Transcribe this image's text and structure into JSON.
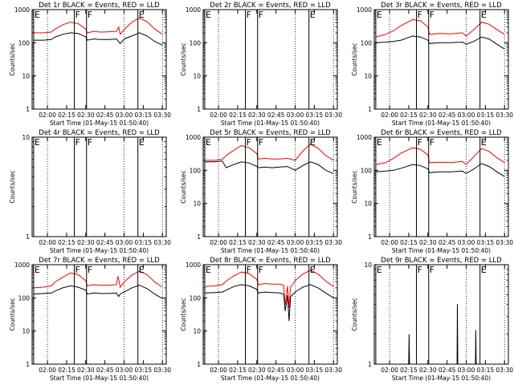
{
  "page": {
    "background": "#ffffff",
    "events_color": "#000000",
    "lld_color": "#ff0000"
  },
  "chart_data": [
    {
      "type": "line",
      "title": "Det 1r BLACK = Events, RED = LLD",
      "xlabel": "Start Time (01-May-15 01:50:40)",
      "ylabel": "Counts/sec",
      "yscale": "log",
      "ylim": [
        1,
        1000
      ],
      "xlim": [
        1.8,
        3.55
      ],
      "x_ticks": [
        "02:00",
        "02:15",
        "02:30",
        "02:45",
        "03:00",
        "03:15",
        "03:30"
      ],
      "y_ticks": [
        "1",
        "10",
        "100",
        "1000"
      ],
      "markers": [
        {
          "label": "E",
          "x": 1.82
        },
        {
          "label": "F",
          "x": 2.35
        },
        {
          "label": "F",
          "x": 2.51
        },
        {
          "label": "E",
          "x": 3.18
        }
      ],
      "series": [
        {
          "name": "Events",
          "color": "#000000",
          "x": [
            1.82,
            1.95,
            2.05,
            2.1,
            2.2,
            2.3,
            2.4,
            2.5,
            2.52,
            2.6,
            2.7,
            2.8,
            2.9,
            2.95,
            3.0,
            3.1,
            3.2,
            3.3,
            3.4,
            3.5
          ],
          "values": [
            120,
            120,
            125,
            150,
            180,
            200,
            190,
            150,
            120,
            130,
            125,
            125,
            130,
            95,
            130,
            160,
            200,
            160,
            110,
            85
          ]
        },
        {
          "name": "LLD",
          "color": "#ff0000",
          "x": [
            1.82,
            1.95,
            2.05,
            2.1,
            2.2,
            2.3,
            2.4,
            2.5,
            2.52,
            2.6,
            2.7,
            2.8,
            2.9,
            2.93,
            2.95,
            3.0,
            3.1,
            3.2,
            3.3,
            3.4,
            3.5
          ],
          "values": [
            200,
            200,
            210,
            260,
            350,
            420,
            380,
            260,
            200,
            220,
            210,
            215,
            220,
            300,
            180,
            250,
            420,
            560,
            430,
            260,
            180
          ]
        }
      ]
    },
    {
      "type": "line",
      "title": "Det 2r BLACK = Events, RED = LLD",
      "xlabel": "Start Time (01-May-15 01:50:40)",
      "ylabel": "Counts/sec",
      "yscale": "log",
      "ylim": [
        1,
        1000
      ],
      "xlim": [
        1.8,
        3.55
      ],
      "x_ticks": [
        "02:00",
        "02:15",
        "02:30",
        "02:45",
        "03:00",
        "03:15",
        "03:30"
      ],
      "y_ticks": [
        "1",
        "10",
        "100",
        "1000"
      ],
      "markers": [
        {
          "label": "E",
          "x": 1.82
        },
        {
          "label": "F",
          "x": 2.35
        },
        {
          "label": "F",
          "x": 2.51
        },
        {
          "label": "E",
          "x": 3.18
        }
      ],
      "series": []
    },
    {
      "type": "line",
      "title": "Det 3r BLACK = Events, RED = LLD",
      "xlabel": "Start Time (01-May-15 01:50:40)",
      "ylabel": "Counts/sec",
      "yscale": "log",
      "ylim": [
        1,
        1000
      ],
      "xlim": [
        1.8,
        3.55
      ],
      "x_ticks": [
        "02:00",
        "02:15",
        "02:30",
        "02:45",
        "03:00",
        "03:15",
        "03:30"
      ],
      "y_ticks": [
        "1",
        "10",
        "100",
        "1000"
      ],
      "markers": [
        {
          "label": "E",
          "x": 1.82
        },
        {
          "label": "F",
          "x": 2.35
        },
        {
          "label": "F",
          "x": 2.51
        },
        {
          "label": "E",
          "x": 3.18
        }
      ],
      "series": [
        {
          "name": "Events",
          "color": "#000000",
          "x": [
            1.82,
            1.95,
            2.05,
            2.15,
            2.3,
            2.4,
            2.5,
            2.52,
            2.65,
            2.8,
            2.95,
            3.0,
            3.1,
            3.2,
            3.3,
            3.4,
            3.5
          ],
          "values": [
            100,
            105,
            110,
            120,
            160,
            150,
            120,
            95,
            100,
            100,
            105,
            90,
            110,
            150,
            130,
            90,
            65
          ]
        },
        {
          "name": "LLD",
          "color": "#ff0000",
          "x": [
            1.82,
            1.95,
            2.05,
            2.15,
            2.3,
            2.4,
            2.5,
            2.52,
            2.65,
            2.8,
            2.95,
            3.0,
            3.1,
            3.2,
            3.3,
            3.4,
            3.5
          ],
          "values": [
            150,
            180,
            230,
            330,
            500,
            460,
            300,
            180,
            190,
            185,
            200,
            160,
            250,
            420,
            360,
            250,
            180
          ]
        }
      ]
    },
    {
      "type": "line",
      "title": "Det 4r BLACK = Events, RED = LLD",
      "xlabel": "Start Time (01-May-15 01:50:40)",
      "ylabel": "Counts/sec",
      "yscale": "log",
      "ylim": [
        1,
        10
      ],
      "xlim": [
        1.8,
        3.55
      ],
      "x_ticks": [
        "02:00",
        "02:15",
        "02:30",
        "02:45",
        "03:00",
        "03:15",
        "03:30"
      ],
      "y_ticks": [
        "1",
        "10"
      ],
      "markers": [
        {
          "label": "E",
          "x": 1.82
        },
        {
          "label": "F",
          "x": 2.35
        },
        {
          "label": "F",
          "x": 2.51
        },
        {
          "label": "E",
          "x": 3.18
        }
      ],
      "series": []
    },
    {
      "type": "line",
      "title": "Det 5r BLACK = Events, RED = LLD",
      "xlabel": "Start Time (01-May-15 01:50:40)",
      "ylabel": "Counts/sec",
      "yscale": "log",
      "ylim": [
        1,
        1000
      ],
      "xlim": [
        1.8,
        3.55
      ],
      "x_ticks": [
        "02:00",
        "02:15",
        "02:30",
        "02:45",
        "03:00",
        "03:15",
        "03:30"
      ],
      "y_ticks": [
        "1",
        "10",
        "100",
        "1000"
      ],
      "markers": [
        {
          "label": "E",
          "x": 1.82
        },
        {
          "label": "F",
          "x": 2.35
        },
        {
          "label": "F",
          "x": 2.51
        },
        {
          "label": "E",
          "x": 3.18
        }
      ],
      "series": [
        {
          "name": "Events",
          "color": "#000000",
          "x": [
            1.82,
            1.95,
            2.05,
            2.1,
            2.2,
            2.3,
            2.4,
            2.5,
            2.52,
            2.6,
            2.7,
            2.8,
            2.9,
            3.0,
            3.1,
            3.2,
            3.3,
            3.4,
            3.5
          ],
          "values": [
            180,
            180,
            190,
            120,
            150,
            180,
            165,
            130,
            120,
            125,
            120,
            125,
            130,
            100,
            140,
            180,
            150,
            100,
            80
          ]
        },
        {
          "name": "LLD",
          "color": "#ff0000",
          "x": [
            1.82,
            1.95,
            2.05,
            2.1,
            2.2,
            2.3,
            2.4,
            2.5,
            2.52,
            2.6,
            2.7,
            2.8,
            2.9,
            3.0,
            3.1,
            3.2,
            3.3,
            3.4,
            3.5
          ],
          "values": [
            200,
            200,
            215,
            280,
            400,
            560,
            480,
            320,
            220,
            230,
            220,
            220,
            230,
            200,
            380,
            620,
            460,
            280,
            200
          ]
        }
      ]
    },
    {
      "type": "line",
      "title": "Det 6r BLACK = Events, RED = LLD",
      "xlabel": "Start Time (01-May-15 01:50:40)",
      "ylabel": "Counts/sec",
      "yscale": "log",
      "ylim": [
        1,
        1000
      ],
      "xlim": [
        1.8,
        3.55
      ],
      "x_ticks": [
        "02:00",
        "02:15",
        "02:30",
        "02:45",
        "03:00",
        "03:15",
        "03:30"
      ],
      "y_ticks": [
        "1",
        "10",
        "100",
        "1000"
      ],
      "markers": [
        {
          "label": "E",
          "x": 1.82
        },
        {
          "label": "F",
          "x": 2.35
        },
        {
          "label": "F",
          "x": 2.51
        },
        {
          "label": "E",
          "x": 3.18
        }
      ],
      "series": [
        {
          "name": "Events",
          "color": "#000000",
          "x": [
            1.82,
            1.95,
            2.05,
            2.15,
            2.3,
            2.4,
            2.5,
            2.52,
            2.65,
            2.8,
            2.95,
            3.0,
            3.1,
            3.2,
            3.3,
            3.4,
            3.5
          ],
          "values": [
            90,
            95,
            100,
            115,
            150,
            140,
            110,
            85,
            90,
            90,
            95,
            80,
            110,
            160,
            130,
            90,
            65
          ]
        },
        {
          "name": "LLD",
          "color": "#ff0000",
          "x": [
            1.82,
            1.95,
            2.05,
            2.15,
            2.3,
            2.4,
            2.5,
            2.52,
            2.65,
            2.8,
            2.95,
            3.0,
            3.1,
            3.2,
            3.3,
            3.4,
            3.5
          ],
          "values": [
            150,
            170,
            230,
            330,
            480,
            430,
            290,
            170,
            175,
            170,
            185,
            150,
            260,
            450,
            370,
            240,
            170
          ]
        }
      ]
    },
    {
      "type": "line",
      "title": "Det 7r BLACK = Events, RED = LLD",
      "xlabel": "Start Time (01-May-15 01:50:40)",
      "ylabel": "Counts/sec",
      "yscale": "log",
      "ylim": [
        1,
        1000
      ],
      "xlim": [
        1.8,
        3.55
      ],
      "x_ticks": [
        "02:00",
        "02:15",
        "02:30",
        "02:45",
        "03:00",
        "03:15",
        "03:30"
      ],
      "y_ticks": [
        "1",
        "10",
        "100",
        "1000"
      ],
      "markers": [
        {
          "label": "E",
          "x": 1.82
        },
        {
          "label": "F",
          "x": 2.35
        },
        {
          "label": "F",
          "x": 2.51
        },
        {
          "label": "E",
          "x": 3.18
        }
      ],
      "series": [
        {
          "name": "Events",
          "color": "#000000",
          "x": [
            1.82,
            1.95,
            2.05,
            2.1,
            2.2,
            2.3,
            2.4,
            2.5,
            2.52,
            2.6,
            2.7,
            2.8,
            2.9,
            2.93,
            2.95,
            3.0,
            3.1,
            3.2,
            3.3,
            3.4,
            3.5
          ],
          "values": [
            130,
            135,
            140,
            160,
            200,
            230,
            210,
            170,
            130,
            140,
            135,
            135,
            140,
            110,
            130,
            150,
            200,
            240,
            190,
            130,
            95
          ]
        },
        {
          "name": "LLD",
          "color": "#ff0000",
          "x": [
            1.82,
            1.95,
            2.05,
            2.1,
            2.2,
            2.3,
            2.4,
            2.5,
            2.52,
            2.6,
            2.7,
            2.8,
            2.9,
            2.92,
            2.95,
            3.0,
            3.1,
            3.2,
            3.3,
            3.4,
            3.5
          ],
          "values": [
            200,
            210,
            230,
            300,
            420,
            560,
            500,
            330,
            230,
            250,
            240,
            240,
            250,
            450,
            210,
            300,
            480,
            640,
            500,
            300,
            210
          ]
        }
      ]
    },
    {
      "type": "line",
      "title": "Det 8r BLACK = Events, RED = LLD",
      "xlabel": "Start Time (01-May-15 01:50:40)",
      "ylabel": "Counts/sec",
      "yscale": "log",
      "ylim": [
        1,
        1000
      ],
      "xlim": [
        1.8,
        3.55
      ],
      "x_ticks": [
        "02:00",
        "02:15",
        "02:30",
        "02:45",
        "03:00",
        "03:15",
        "03:30"
      ],
      "y_ticks": [
        "1",
        "10",
        "100",
        "1000"
      ],
      "markers": [
        {
          "label": "E",
          "x": 1.82
        },
        {
          "label": "F",
          "x": 2.35
        },
        {
          "label": "F",
          "x": 2.51
        },
        {
          "label": "E",
          "x": 3.18
        }
      ],
      "series": [
        {
          "name": "Events",
          "color": "#000000",
          "x": [
            1.82,
            1.95,
            2.05,
            2.1,
            2.2,
            2.3,
            2.4,
            2.5,
            2.52,
            2.6,
            2.7,
            2.8,
            2.85,
            2.87,
            2.9,
            2.92,
            2.94,
            2.96,
            3.0,
            3.1,
            3.2,
            3.3,
            3.4,
            3.5
          ],
          "values": [
            140,
            145,
            150,
            170,
            220,
            250,
            230,
            180,
            140,
            150,
            145,
            140,
            130,
            40,
            120,
            20,
            110,
            120,
            150,
            210,
            250,
            200,
            140,
            100
          ]
        },
        {
          "name": "LLD",
          "color": "#ff0000",
          "x": [
            1.82,
            1.95,
            2.05,
            2.1,
            2.2,
            2.3,
            2.4,
            2.5,
            2.52,
            2.6,
            2.7,
            2.8,
            2.85,
            2.87,
            2.9,
            2.92,
            2.94,
            2.96,
            3.0,
            3.1,
            3.2,
            3.3,
            3.4,
            3.5
          ],
          "values": [
            220,
            230,
            250,
            320,
            460,
            600,
            540,
            360,
            250,
            270,
            260,
            260,
            240,
            60,
            230,
            50,
            220,
            240,
            330,
            520,
            680,
            520,
            320,
            220
          ]
        }
      ]
    },
    {
      "type": "line",
      "title": "Det 9r BLACK = Events, RED = LLD",
      "xlabel": "Start Time (01-May-15 01:50:40)",
      "ylabel": "Counts/sec",
      "yscale": "log",
      "ylim": [
        1,
        10
      ],
      "xlim": [
        1.8,
        3.55
      ],
      "x_ticks": [
        "02:00",
        "02:15",
        "02:30",
        "02:45",
        "03:00",
        "03:15",
        "03:30"
      ],
      "y_ticks": [
        "1",
        "10"
      ],
      "markers": [
        {
          "label": "E",
          "x": 1.82
        },
        {
          "label": "F",
          "x": 2.35
        },
        {
          "label": "F",
          "x": 2.51
        },
        {
          "label": "E",
          "x": 3.18
        }
      ],
      "series": [
        {
          "name": "Events",
          "color": "#000000",
          "x": [
            2.25,
            2.255,
            2.26,
            2.88,
            2.885,
            2.89,
            3.12,
            3.125,
            3.13
          ],
          "values": [
            1,
            2,
            1,
            1,
            4,
            1,
            1,
            2.2,
            1
          ]
        }
      ]
    }
  ]
}
